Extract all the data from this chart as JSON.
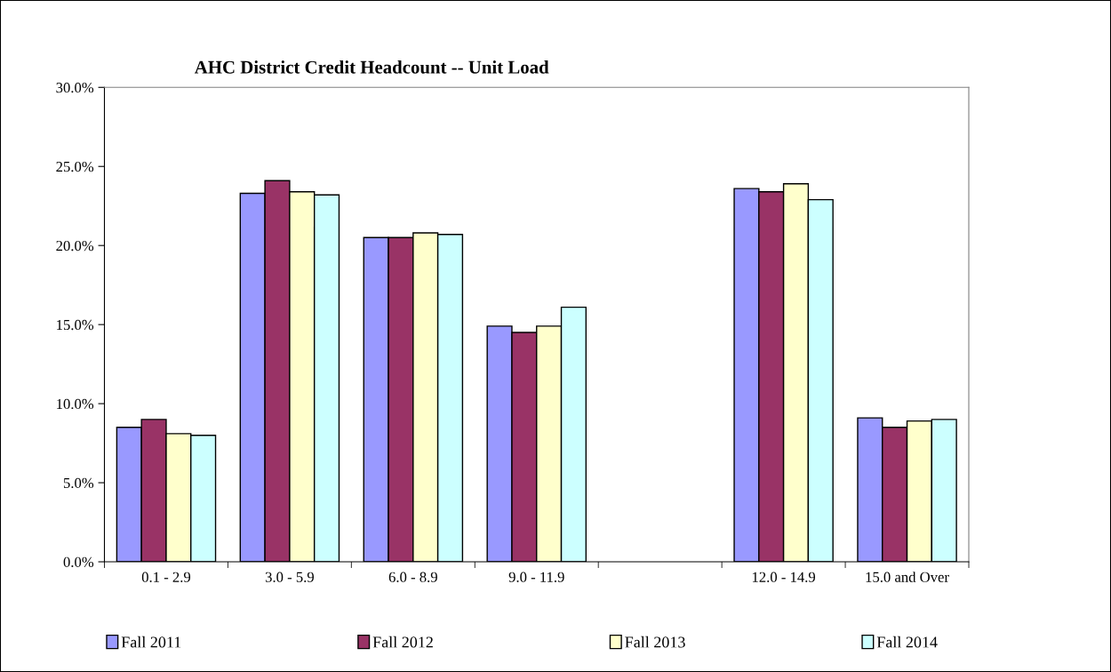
{
  "chart_data": {
    "type": "bar",
    "title": "AHC District Credit Headcount -- Unit Load",
    "categories": [
      "0.1 - 2.9",
      "3.0 - 5.9",
      "6.0 - 8.9",
      "9.0 - 11.9",
      null,
      "12.0 - 14.9",
      "15.0 and Over"
    ],
    "series": [
      {
        "name": "Fall 2011",
        "color": "#9999ff",
        "values": [
          8.5,
          23.3,
          20.5,
          14.9,
          null,
          23.6,
          9.1
        ]
      },
      {
        "name": "Fall 2012",
        "color": "#993366",
        "values": [
          9.0,
          24.1,
          20.5,
          14.5,
          null,
          23.4,
          8.5
        ]
      },
      {
        "name": "Fall 2013",
        "color": "#ffffcc",
        "values": [
          8.1,
          23.4,
          20.8,
          14.9,
          null,
          23.9,
          8.9
        ]
      },
      {
        "name": "Fall 2014",
        "color": "#ccffff",
        "values": [
          8.0,
          23.2,
          20.7,
          16.1,
          null,
          22.9,
          9.0
        ]
      }
    ],
    "ylim": [
      0,
      30
    ],
    "yticks": [
      {
        "value": 0,
        "label": "0.0%"
      },
      {
        "value": 5,
        "label": "5.0%"
      },
      {
        "value": 10,
        "label": "10.0%"
      },
      {
        "value": 15,
        "label": "15.0%"
      },
      {
        "value": 20,
        "label": "20.0%"
      },
      {
        "value": 25,
        "label": "25.0%"
      },
      {
        "value": 30,
        "label": "30.0%"
      }
    ],
    "grid": false,
    "legend": "bottom"
  }
}
